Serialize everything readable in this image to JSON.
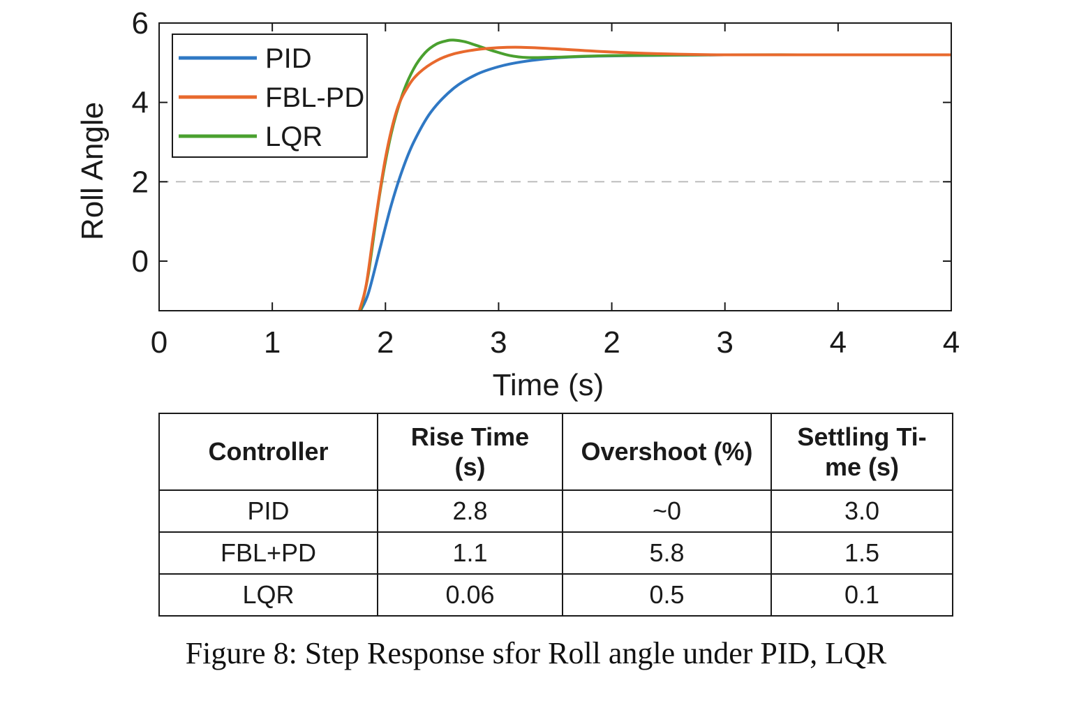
{
  "chart_data": {
    "type": "line",
    "ylabel": "Roll Angle",
    "xlabel": "Time (s)",
    "xlim": [
      0,
      7
    ],
    "ylim": [
      -1.25,
      6
    ],
    "xticks": [
      0,
      1,
      2,
      3,
      4,
      5,
      6,
      7
    ],
    "xtick_labels": [
      "0",
      "1",
      "2",
      "3",
      "2",
      "3",
      "4",
      "4"
    ],
    "yticks": [
      0,
      2,
      4,
      6
    ],
    "ytick_labels": [
      "0",
      "2",
      "4",
      "6"
    ],
    "reference_line": {
      "y": 2,
      "style": "dashed",
      "color": "#bdbdbd"
    },
    "grid": false,
    "legend": {
      "placement": "top-left"
    },
    "series": [
      {
        "name": "PID",
        "color": "#2f78c4",
        "x": [
          1.78,
          1.85,
          1.95,
          2.05,
          2.15,
          2.25,
          2.4,
          2.6,
          2.8,
          3.0,
          3.2,
          3.5,
          3.8,
          4.2,
          5.0,
          6.0,
          7.0
        ],
        "y": [
          -1.25,
          -0.8,
          0.3,
          1.4,
          2.3,
          3.0,
          3.75,
          4.35,
          4.7,
          4.9,
          5.02,
          5.12,
          5.16,
          5.18,
          5.2,
          5.2,
          5.2
        ]
      },
      {
        "name": "FBL-PD",
        "color": "#e8692d",
        "x": [
          1.77,
          1.83,
          1.9,
          2.0,
          2.1,
          2.2,
          2.3,
          2.45,
          2.6,
          2.8,
          3.0,
          3.2,
          3.5,
          4.0,
          4.5,
          5.0,
          6.0,
          7.0
        ],
        "y": [
          -1.25,
          -0.6,
          0.8,
          2.6,
          3.8,
          4.4,
          4.75,
          5.05,
          5.22,
          5.33,
          5.38,
          5.39,
          5.35,
          5.27,
          5.22,
          5.2,
          5.2,
          5.2
        ]
      },
      {
        "name": "LQR",
        "color": "#4aa02f",
        "x": [
          1.78,
          1.85,
          1.95,
          2.05,
          2.15,
          2.25,
          2.35,
          2.45,
          2.55,
          2.6,
          2.7,
          2.8,
          2.95,
          3.1,
          3.25,
          3.5,
          4.0,
          5.0,
          6.0,
          7.0
        ],
        "y": [
          -1.25,
          -0.3,
          1.7,
          3.2,
          4.2,
          4.85,
          5.25,
          5.47,
          5.56,
          5.57,
          5.53,
          5.44,
          5.3,
          5.18,
          5.13,
          5.14,
          5.18,
          5.2,
          5.2,
          5.2
        ]
      }
    ]
  },
  "table": {
    "headers": [
      "Controller",
      "Rise Time (s)",
      "Overshoot (%)",
      "Settling Ti-me (s)"
    ],
    "header_lines": [
      [
        "Controller"
      ],
      [
        "Rise Time",
        "(s)"
      ],
      [
        "Overshoot (%)"
      ],
      [
        "Settling Ti-",
        "me (s)"
      ]
    ],
    "rows": [
      [
        "PID",
        "2.8",
        "~0",
        "3.0"
      ],
      [
        "FBL+PD",
        "1.1",
        "5.8",
        "1.5"
      ],
      [
        "LQR",
        "0.06",
        "0.5",
        "0.1"
      ]
    ]
  },
  "caption": "Figure 8: Step Response sfor Roll angle under PID, LQR"
}
